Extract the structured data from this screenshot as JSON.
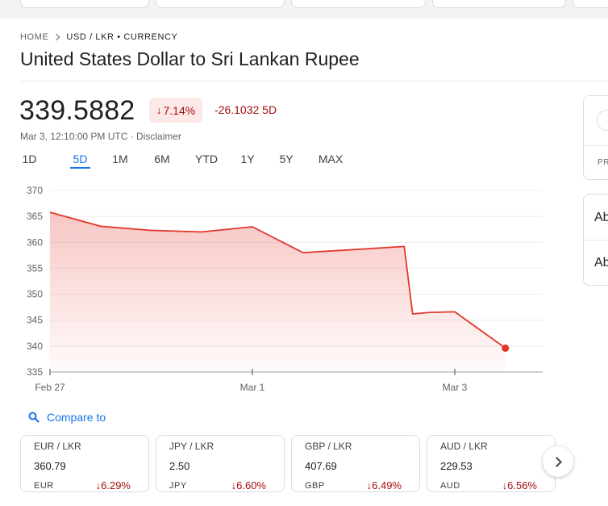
{
  "breadcrumb": {
    "home": "HOME",
    "current": "USD / LKR • CURRENCY"
  },
  "title": "United States Dollar to Sri Lankan Rupee",
  "quote": {
    "price": "339.5882",
    "pct_change": "7.14%",
    "abs_change": "-26.1032 5D",
    "timestamp": "Mar 3, 12:10:00 PM UTC · Disclaimer"
  },
  "ranges": [
    "1D",
    "5D",
    "1M",
    "6M",
    "YTD",
    "1Y",
    "5Y",
    "MAX"
  ],
  "selected_range": "5D",
  "chart_data": {
    "type": "area",
    "x": [
      "Feb 27 00:00",
      "Feb 27 12:00",
      "Feb 28 00:00",
      "Feb 28 12:00",
      "Mar 1 00:00",
      "Mar 1 12:00",
      "Mar 2 00:00",
      "Mar 2 12:00",
      "Mar 2 14:00",
      "Mar 2 18:00",
      "Mar 3 00:00",
      "Mar 3 12:00"
    ],
    "series": [
      {
        "values": [
          365.8,
          363.1,
          362.3,
          362.0,
          363.0,
          358.0,
          358.6,
          359.2,
          346.2,
          346.5,
          346.6,
          339.6
        ]
      }
    ],
    "x_ticks": [
      "Feb 27",
      "Mar 1",
      "Mar 3"
    ],
    "y_ticks": [
      335,
      340,
      345,
      350,
      355,
      360,
      365,
      370
    ],
    "ylim": [
      335,
      370
    ],
    "grid": true,
    "color": "#e3362b"
  },
  "compare": {
    "label": "Compare to"
  },
  "cards": [
    {
      "pair": "EUR / LKR",
      "value": "360.79",
      "currency": "EUR",
      "change": "6.29%"
    },
    {
      "pair": "JPY / LKR",
      "value": "2.50",
      "currency": "JPY",
      "change": "6.60%"
    },
    {
      "pair": "GBP / LKR",
      "value": "407.69",
      "currency": "GBP",
      "change": "6.49%"
    },
    {
      "pair": "AUD / LKR",
      "value": "229.53",
      "currency": "AUD",
      "change": "6.56%"
    }
  ],
  "side": {
    "row1": "Ab",
    "row2": "Ab",
    "label": "PR"
  },
  "colors": {
    "negative": "#a50e0e",
    "negative_bg": "#fce8e6",
    "accent": "#1a73e8",
    "line": "#e3362b"
  },
  "icons": {
    "compare": "search-icon",
    "next": "chevron-right-icon",
    "down": "arrow-down-icon"
  }
}
